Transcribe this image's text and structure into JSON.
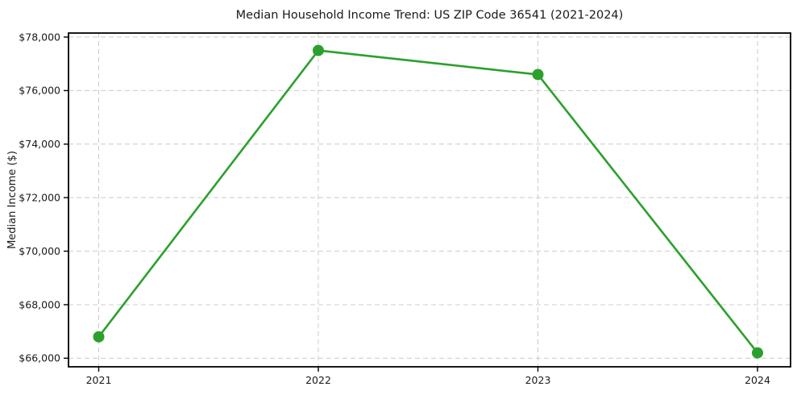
{
  "figure": {
    "title": "Median Household Income Trend: US ZIP Code 36541 (2021-2024)",
    "ylabel": "Median Income ($)"
  },
  "chart_data": {
    "type": "line",
    "title": "Median Household Income Trend: US ZIP Code 36541 (2021-2024)",
    "xlabel": "",
    "ylabel": "Median Income ($)",
    "categories": [
      "2021",
      "2022",
      "2023",
      "2024"
    ],
    "series": [
      {
        "name": "Median Household Income",
        "values": [
          66800,
          77500,
          76600,
          66200
        ]
      }
    ],
    "yticks": [
      66000,
      68000,
      70000,
      72000,
      74000,
      76000,
      78000
    ],
    "ytick_labels": [
      "$66,000",
      "$68,000",
      "$70,000",
      "$72,000",
      "$74,000",
      "$76,000",
      "$78,000"
    ],
    "xtick_labels": [
      "2021",
      "2022",
      "2023",
      "2024"
    ],
    "ylim": [
      65680,
      78150
    ],
    "grid": "both, dashed",
    "legend_position": "none",
    "colors": {
      "line": "#2ca02c",
      "marker": "#2ca02c",
      "grid": "#cccccc",
      "spine": "#000000",
      "text": "#1a1a1a",
      "background": "#ffffff"
    }
  }
}
